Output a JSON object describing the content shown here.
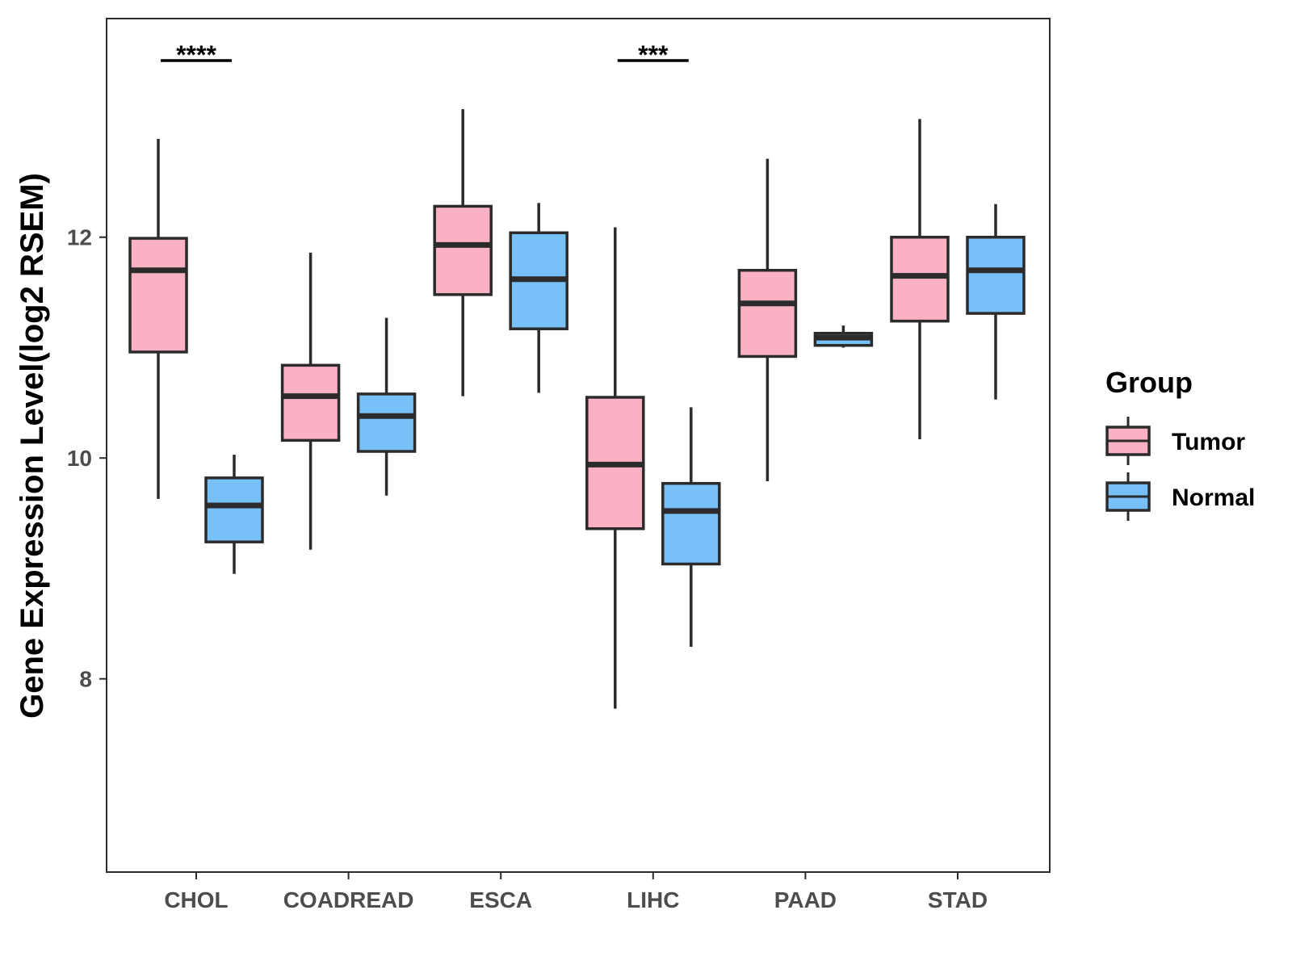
{
  "chart_data": {
    "type": "boxplot",
    "ylabel": "Gene Expression Level(log2 RSEM)",
    "xlabel": "",
    "ylim": [
      6.25,
      13.98
    ],
    "yticks": [
      {
        "value": 8,
        "label": "8"
      },
      {
        "value": 10,
        "label": "10"
      },
      {
        "value": 12,
        "label": "12"
      }
    ],
    "categories": [
      "CHOL",
      "COADREAD",
      "ESCA",
      "LIHC",
      "PAAD",
      "STAD"
    ],
    "colors": {
      "Tumor": "#fbb1c4",
      "Normal": "#78c1f8",
      "stroke": "#2b2b2b"
    },
    "legend": {
      "title": "Group",
      "position": "right",
      "items": [
        {
          "name": "Tumor",
          "label": "Tumor"
        },
        {
          "name": "Normal",
          "label": "Normal"
        }
      ]
    },
    "series": [
      {
        "name": "Tumor",
        "boxes": [
          {
            "category": "CHOL",
            "min": 9.63,
            "q1": 10.96,
            "median": 11.7,
            "q3": 11.99,
            "max": 12.89
          },
          {
            "category": "COADREAD",
            "min": 9.17,
            "q1": 10.16,
            "median": 10.56,
            "q3": 10.84,
            "max": 11.86
          },
          {
            "category": "ESCA",
            "min": 10.56,
            "q1": 11.48,
            "median": 11.93,
            "q3": 12.28,
            "max": 13.16
          },
          {
            "category": "LIHC",
            "min": 7.73,
            "q1": 9.36,
            "median": 9.94,
            "q3": 10.55,
            "max": 12.09
          },
          {
            "category": "PAAD",
            "min": 9.79,
            "q1": 10.92,
            "median": 11.4,
            "q3": 11.7,
            "max": 12.71
          },
          {
            "category": "STAD",
            "min": 10.17,
            "q1": 11.24,
            "median": 11.65,
            "q3": 12.0,
            "max": 13.07
          }
        ]
      },
      {
        "name": "Normal",
        "boxes": [
          {
            "category": "CHOL",
            "min": 8.95,
            "q1": 9.24,
            "median": 9.57,
            "q3": 9.82,
            "max": 10.03
          },
          {
            "category": "COADREAD",
            "min": 9.66,
            "q1": 10.06,
            "median": 10.38,
            "q3": 10.58,
            "max": 11.27
          },
          {
            "category": "ESCA",
            "min": 10.59,
            "q1": 11.17,
            "median": 11.62,
            "q3": 12.04,
            "max": 12.31
          },
          {
            "category": "LIHC",
            "min": 8.29,
            "q1": 9.04,
            "median": 9.52,
            "q3": 9.77,
            "max": 10.46
          },
          {
            "category": "PAAD",
            "min": 11.0,
            "q1": 11.02,
            "median": 11.09,
            "q3": 11.13,
            "max": 11.2
          },
          {
            "category": "STAD",
            "min": 10.53,
            "q1": 11.31,
            "median": 11.7,
            "q3": 12.0,
            "max": 12.3
          }
        ]
      }
    ],
    "annotations": [
      {
        "category": "CHOL",
        "label": "****"
      },
      {
        "category": "LIHC",
        "label": "***"
      }
    ]
  }
}
